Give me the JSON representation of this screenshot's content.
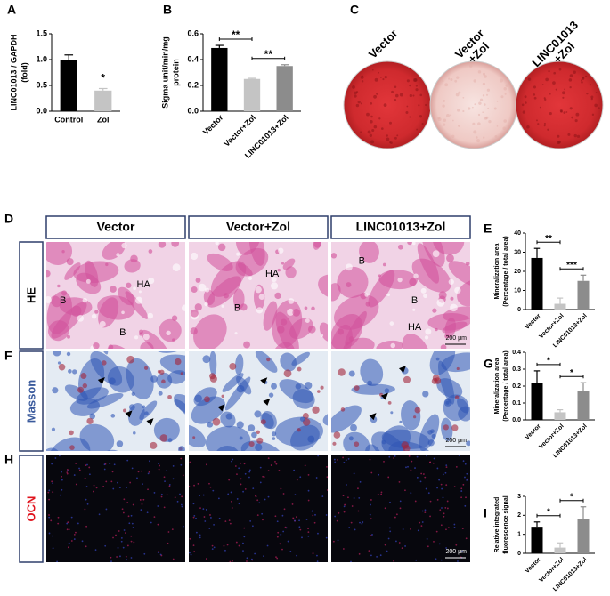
{
  "chart_data": [
    {
      "type": "bar",
      "panel": "A",
      "ylabel": [
        "LINC01013 / GAPDH",
        "(fold)"
      ],
      "categories": [
        "Control",
        "Zol"
      ],
      "values": [
        1.0,
        0.4
      ],
      "errors": [
        0.09,
        0.04
      ],
      "colors": [
        "#000000",
        "#c4c4c4"
      ],
      "ylim": [
        0,
        1.5
      ],
      "yticks": [
        {
          "value": 0,
          "label": "0.0"
        },
        0.5,
        {
          "value": 1,
          "label": "1.0"
        },
        1.5
      ],
      "annotations": [
        {
          "label": "*",
          "between": [
            "Zol"
          ]
        }
      ]
    },
    {
      "type": "bar",
      "panel": "B",
      "ylabel": [
        "Sigma unit/min/mg",
        "protein"
      ],
      "categories": [
        "Vector",
        "Vector+Zol",
        "LINC01013+Zol"
      ],
      "values": [
        0.49,
        0.25,
        0.35
      ],
      "errors": [
        0.02,
        0.005,
        0.01
      ],
      "colors": [
        "#000000",
        "#c4c4c4",
        "#8c8c8c"
      ],
      "ylim": [
        0,
        0.6
      ],
      "yticks": [
        {
          "value": 0,
          "label": "0.0"
        },
        0.2,
        0.4,
        0.6
      ],
      "annotations": [
        {
          "label": "**",
          "between": [
            "Vector",
            "Vector+Zol"
          ]
        },
        {
          "label": "**",
          "between": [
            "Vector+Zol",
            "LINC01013+Zol"
          ]
        }
      ]
    },
    {
      "type": "bar",
      "panel": "E",
      "ylabel": [
        "Mineralization area",
        "(Percentage / total area)"
      ],
      "categories": [
        "Vector",
        "Vector+Zol",
        "LINC01013+Zol"
      ],
      "values": [
        27,
        3,
        15
      ],
      "errors": [
        5,
        3,
        3
      ],
      "colors": [
        "#000000",
        "#c4c4c4",
        "#8c8c8c"
      ],
      "ylim": [
        0,
        40
      ],
      "yticks": [
        0,
        10,
        20,
        30,
        40
      ],
      "annotations": [
        {
          "label": "**",
          "between": [
            "Vector",
            "Vector+Zol"
          ]
        },
        {
          "label": "***",
          "between": [
            "Vector+Zol",
            "LINC01013+Zol"
          ]
        }
      ]
    },
    {
      "type": "bar",
      "panel": "G",
      "ylabel": [
        "Mineralization area",
        "(Percentage / total area)"
      ],
      "categories": [
        "Vector",
        "Vector+Zol",
        "LINC01013+Zol"
      ],
      "values": [
        0.22,
        0.045,
        0.17
      ],
      "errors": [
        0.07,
        0.015,
        0.05
      ],
      "colors": [
        "#000000",
        "#c4c4c4",
        "#8c8c8c"
      ],
      "ylim": [
        0,
        0.4
      ],
      "yticks": [
        {
          "value": 0,
          "label": "0.0"
        },
        0.1,
        0.2,
        0.3,
        0.4
      ],
      "annotations": [
        {
          "label": "*",
          "between": [
            "Vector",
            "Vector+Zol"
          ]
        },
        {
          "label": "*",
          "between": [
            "Vector+Zol",
            "LINC01013+Zol"
          ]
        }
      ]
    },
    {
      "type": "bar",
      "panel": "I",
      "ylabel": [
        "Relative integrated",
        "fluorescence signal"
      ],
      "categories": [
        "Vector",
        "Vector+Zol",
        "LINC01013+Zol"
      ],
      "values": [
        1.4,
        0.3,
        1.8
      ],
      "errors": [
        0.25,
        0.25,
        0.65
      ],
      "colors": [
        "#000000",
        "#c4c4c4",
        "#8c8c8c"
      ],
      "ylim": [
        0,
        3
      ],
      "yticks": [
        0,
        1,
        2,
        3
      ],
      "annotations": [
        {
          "label": "*",
          "between": [
            "Vector",
            "Vector+Zol"
          ]
        },
        {
          "label": "*",
          "between": [
            "Vector+Zol",
            "LINC01013+Zol"
          ]
        }
      ]
    }
  ],
  "panel_c": {
    "panel": "C",
    "dishes": [
      [
        "Vector"
      ],
      [
        "Vector",
        "+Zol"
      ],
      [
        "LINC01013",
        "+Zol"
      ]
    ]
  },
  "panel_d": {
    "panel": "D",
    "columns": [
      "Vector",
      "Vector+Zol",
      "LINC01013+Zol"
    ],
    "rows": [
      {
        "label": "HE",
        "color": "#000000"
      },
      {
        "label": "Masson",
        "color": "#3a5a9c",
        "panel": "F"
      },
      {
        "label": "OCN",
        "color": "#e0141e",
        "panel": "H"
      }
    ],
    "he_labels": [
      [
        "B",
        "HA",
        "B"
      ],
      [
        "HA",
        "B"
      ],
      [
        "B",
        "B",
        "HA"
      ]
    ],
    "scale_bar": "200 μm"
  }
}
